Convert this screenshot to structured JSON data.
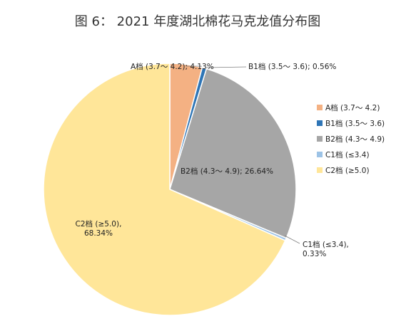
{
  "chart_data": {
    "type": "pie",
    "title": "图 6：    2021 年度湖北棉花马克龙值分布图",
    "slices": [
      {
        "label": "A档 (3.7～ 4.2)",
        "value": 4.13,
        "color": "#F4B183",
        "point_label": "A档 (3.7～ 4.2); 4.13%"
      },
      {
        "label": "B1档 (3.5～ 3.6)",
        "value": 0.56,
        "color": "#2E75B6",
        "point_label": "B1档 (3.5～ 3.6); 0.56%"
      },
      {
        "label": "B2档 (4.3～ 4.9)",
        "value": 26.64,
        "color": "#A6A6A6",
        "point_label": "B2档 (4.3～ 4.9); 26.64%"
      },
      {
        "label": "C1档 (≤3.4)",
        "value": 0.33,
        "color": "#9DC3E6",
        "point_label": "C1档 (≤3.4),\n0.33%"
      },
      {
        "label": "C2档 (≥5.0)",
        "value": 68.34,
        "color": "#FFE699",
        "point_label": "C2档 (≥5.0),\n68.34%"
      }
    ],
    "legend_position": "right"
  }
}
